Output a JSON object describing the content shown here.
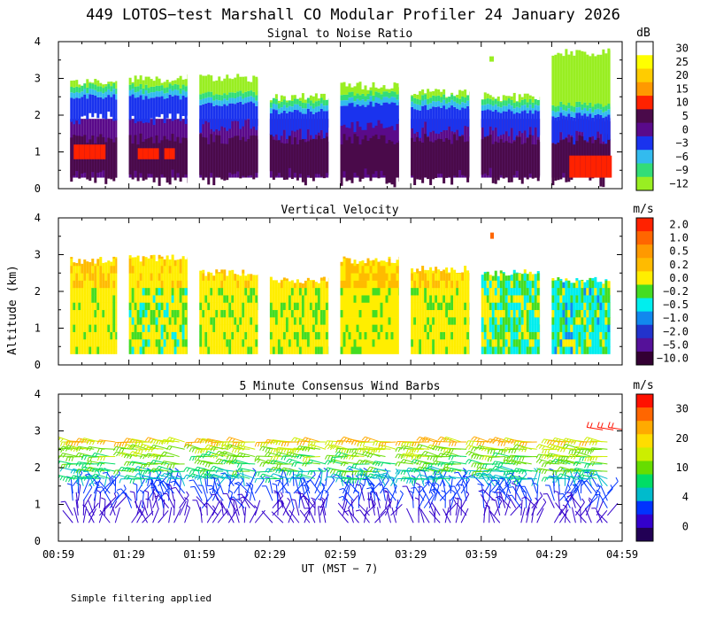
{
  "page": {
    "title": "449 LOTOS−test Marshall CO Modular Profiler 24 January 2026",
    "y_axis_title": "Altitude (km)",
    "footer_note": "Simple filtering applied"
  },
  "chart_data": [
    {
      "type": "heatmap",
      "title": "Signal to Noise Ratio",
      "unit": "dB",
      "ylim": [
        0,
        4
      ],
      "yticks": [
        "0",
        "1",
        "2",
        "3",
        "4"
      ],
      "colorbar": {
        "labels": [
          "30",
          "25",
          "20",
          "15",
          "10",
          "5",
          "0",
          "−3",
          "−6",
          "−9",
          "−12"
        ],
        "colors": [
          "#ffffff",
          "#ffff00",
          "#ffcc00",
          "#ff9900",
          "#ff2200",
          "#4a0a4a",
          "#5a0a8a",
          "#1a33ee",
          "#33bbee",
          "#33dd77",
          "#99ee22"
        ]
      },
      "blocks": [
        {
          "start": "01:04",
          "end": "01:24",
          "top_km": 2.9,
          "noise_top_km": 2.5,
          "hot_km": [
            0.8,
            1.2
          ]
        },
        {
          "start": "01:29",
          "end": "01:54",
          "top_km": 3.0,
          "noise_top_km": 2.5,
          "hot_km": [
            0.8,
            1.1
          ]
        },
        {
          "start": "01:59",
          "end": "02:24",
          "top_km": 3.0,
          "noise_top_km": 2.3,
          "hot_km": []
        },
        {
          "start": "02:29",
          "end": "02:54",
          "top_km": 2.5,
          "noise_top_km": 2.1,
          "hot_km": []
        },
        {
          "start": "02:59",
          "end": "03:24",
          "top_km": 2.8,
          "noise_top_km": 2.3,
          "hot_km": []
        },
        {
          "start": "03:29",
          "end": "03:54",
          "top_km": 2.6,
          "noise_top_km": 2.2,
          "hot_km": []
        },
        {
          "start": "03:59",
          "end": "04:24",
          "top_km": 2.5,
          "noise_top_km": 2.1,
          "hot_km": []
        },
        {
          "start": "04:29",
          "end": "04:54",
          "top_km": 3.7,
          "noise_top_km": 2.0,
          "hot_km": [
            0.3,
            0.9
          ]
        }
      ]
    },
    {
      "type": "heatmap",
      "title": "Vertical Velocity",
      "unit": "m/s",
      "ylim": [
        0,
        4
      ],
      "yticks": [
        "0",
        "1",
        "2",
        "3",
        "4"
      ],
      "colorbar": {
        "labels": [
          "2.0",
          "1.0",
          "0.5",
          "0.2",
          "0.0",
          "−0.2",
          "−0.5",
          "−1.0",
          "−2.0",
          "−5.0",
          "−10.0"
        ],
        "colors": [
          "#ff2200",
          "#ff6600",
          "#ff9900",
          "#ffbb00",
          "#ffee00",
          "#44dd22",
          "#00eeee",
          "#1188ee",
          "#2233cc",
          "#551199",
          "#330033"
        ]
      },
      "blocks": [
        {
          "start": "01:04",
          "end": "01:24",
          "top_km": 2.85,
          "mean": 0.1
        },
        {
          "start": "01:29",
          "end": "01:54",
          "top_km": 2.9,
          "mean": -0.1
        },
        {
          "start": "01:59",
          "end": "02:24",
          "top_km": 2.5,
          "mean": 0.05
        },
        {
          "start": "02:29",
          "end": "02:54",
          "top_km": 2.3,
          "mean": 0.0
        },
        {
          "start": "02:59",
          "end": "03:24",
          "top_km": 2.85,
          "mean": 0.1
        },
        {
          "start": "03:29",
          "end": "03:54",
          "top_km": 2.6,
          "mean": 0.0
        },
        {
          "start": "03:59",
          "end": "04:24",
          "top_km": 2.5,
          "mean": -0.3
        },
        {
          "start": "04:29",
          "end": "04:54",
          "top_km": 2.3,
          "mean": -0.4
        }
      ]
    },
    {
      "type": "scatter",
      "title": "5 Minute Consensus Wind Barbs",
      "unit": "m/s",
      "ylim": [
        0,
        4
      ],
      "yticks": [
        "0",
        "1",
        "2",
        "3",
        "4"
      ],
      "xticks": [
        "00:59",
        "01:29",
        "01:59",
        "02:29",
        "02:59",
        "03:29",
        "03:59",
        "04:29",
        "04:59"
      ],
      "xlabel": "UT  (MST − 7)",
      "colorbar": {
        "labels": [
          "30",
          "20",
          "10",
          "4",
          "0"
        ],
        "colors": [
          "#ff1100",
          "#ff6600",
          "#ffaa00",
          "#ffdd00",
          "#ccee00",
          "#66dd00",
          "#00dd66",
          "#00bbcc",
          "#0033ff",
          "#3300cc",
          "#220055"
        ]
      },
      "profile_speed_ms": [
        {
          "alt_km": 0.4,
          "speed": 2
        },
        {
          "alt_km": 1.0,
          "speed": 3
        },
        {
          "alt_km": 1.5,
          "speed": 6
        },
        {
          "alt_km": 2.0,
          "speed": 10
        },
        {
          "alt_km": 2.5,
          "speed": 13
        },
        {
          "alt_km": 2.8,
          "speed": 18
        },
        {
          "alt_km": 3.1,
          "speed": 30
        }
      ]
    }
  ]
}
